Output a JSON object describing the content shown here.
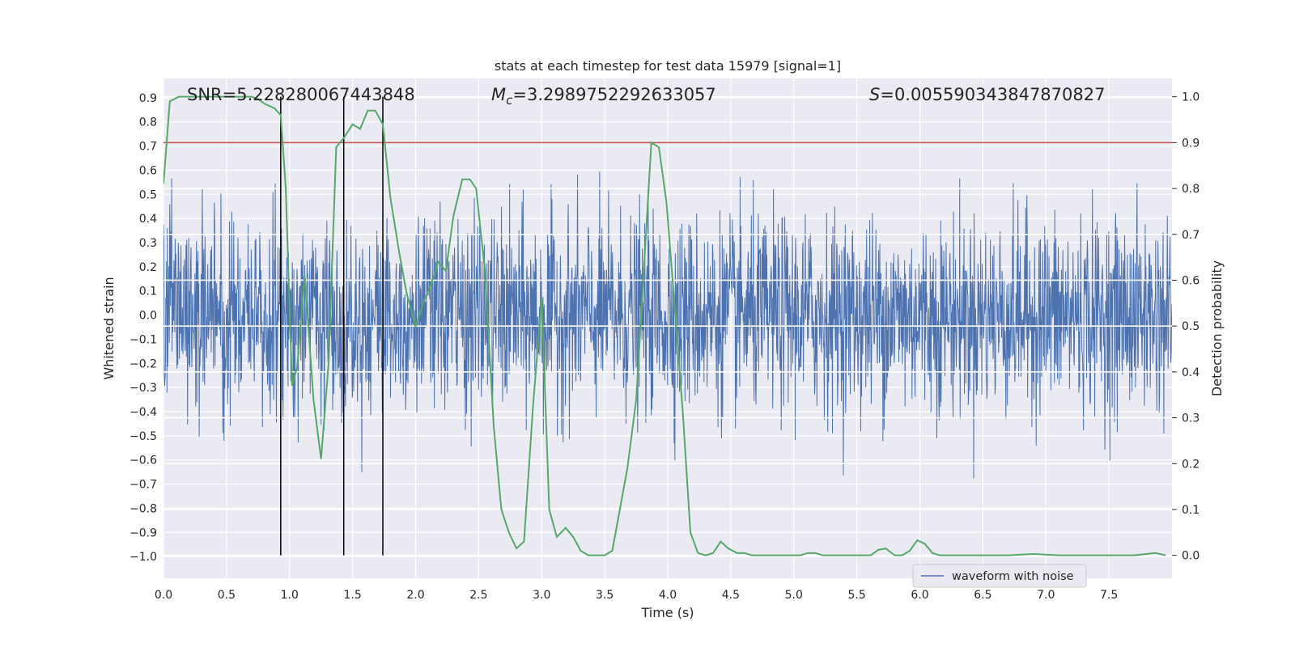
{
  "chart_data": {
    "type": "line",
    "title": "stats at each timestep for test data 15979 [signal=1]",
    "xlabel": "Time (s)",
    "ylabel": "Whitened strain",
    "y2label": "Detection probability",
    "xlim": [
      0.0,
      8.0
    ],
    "ylim": [
      -1.09,
      0.98
    ],
    "y2lim": [
      -0.05,
      1.04
    ],
    "xticks": [
      0.0,
      0.5,
      1.0,
      1.5,
      2.0,
      2.5,
      3.0,
      3.5,
      4.0,
      4.5,
      5.0,
      5.5,
      6.0,
      6.5,
      7.0,
      7.5
    ],
    "xtick_labels": [
      "0.0",
      "0.5",
      "1.0",
      "1.5",
      "2.0",
      "2.5",
      "3.0",
      "3.5",
      "4.0",
      "4.5",
      "5.0",
      "5.5",
      "6.0",
      "6.5",
      "7.0",
      "7.5"
    ],
    "yticks": [
      0.9,
      0.8,
      0.7,
      0.6,
      0.5,
      0.4,
      0.3,
      0.2,
      0.1,
      0.0,
      -0.1,
      -0.2,
      -0.3,
      -0.4,
      -0.5,
      -0.6,
      -0.7,
      -0.8,
      -0.9,
      -1.0
    ],
    "ytick_labels": [
      "0.9",
      "0.8",
      "0.7",
      "0.6",
      "0.5",
      "0.4",
      "0.3",
      "0.2",
      "0.1",
      "0.0",
      "−0.1",
      "−0.2",
      "−0.3",
      "−0.4",
      "−0.5",
      "−0.6",
      "−0.7",
      "−0.8",
      "−0.9",
      "−1.0"
    ],
    "y2ticks": [
      1.0,
      0.9,
      0.8,
      0.7,
      0.6,
      0.5,
      0.4,
      0.3,
      0.2,
      0.1,
      0.0
    ],
    "y2tick_labels": [
      "1.0",
      "0.9",
      "0.8",
      "0.7",
      "0.6",
      "0.5",
      "0.4",
      "0.3",
      "0.2",
      "0.1",
      "0.0"
    ],
    "grid": true,
    "legend_position": "bottom-right",
    "annotations": {
      "snr": {
        "prefix": "SNR",
        "value": "=5.228280067443848"
      },
      "mc": {
        "prefix": "M",
        "subscript": "c",
        "value": "=3.2989752292633057"
      },
      "s": {
        "prefix": "S",
        "value": "=0.005590343847870827"
      }
    },
    "threshold": {
      "y2": 0.9,
      "color": "#c44e52"
    },
    "vlines": {
      "x": [
        0.93,
        1.43,
        1.74
      ],
      "color": "#000000"
    },
    "waveform": {
      "name": "waveform with noise",
      "color": "#4c72b0",
      "noise_sd": 0.2,
      "noise_clip": 0.95
    },
    "probability": {
      "color": "#55a868",
      "x": [
        0.0,
        0.05,
        0.12,
        0.2,
        0.3,
        0.4,
        0.5,
        0.6,
        0.7,
        0.75,
        0.8,
        0.88,
        0.93,
        0.97,
        1.02,
        1.06,
        1.12,
        1.19,
        1.25,
        1.31,
        1.37,
        1.43,
        1.5,
        1.56,
        1.62,
        1.68,
        1.74,
        1.8,
        1.87,
        1.93,
        2.0,
        2.06,
        2.12,
        2.18,
        2.24,
        2.3,
        2.37,
        2.43,
        2.48,
        2.55,
        2.62,
        2.68,
        2.74,
        2.8,
        2.86,
        2.93,
        3.0,
        3.06,
        3.12,
        3.19,
        3.25,
        3.31,
        3.37,
        3.43,
        3.5,
        3.56,
        3.62,
        3.68,
        3.75,
        3.81,
        3.87,
        3.93,
        3.99,
        4.05,
        4.12,
        4.18,
        4.24,
        4.3,
        4.36,
        4.42,
        4.48,
        4.55,
        4.61,
        4.67,
        4.73,
        4.8,
        4.86,
        4.92,
        4.98,
        5.05,
        5.11,
        5.17,
        5.23,
        5.3,
        5.36,
        5.42,
        5.48,
        5.55,
        5.61,
        5.67,
        5.73,
        5.8,
        5.86,
        5.92,
        5.98,
        6.04,
        6.1,
        6.16,
        6.22,
        6.3,
        6.5,
        6.7,
        6.9,
        7.1,
        7.3,
        7.5,
        7.7,
        7.87,
        7.95
      ],
      "y": [
        0.81,
        0.99,
        1.0,
        1.0,
        1.0,
        1.0,
        1.0,
        1.0,
        1.0,
        0.995,
        0.985,
        0.975,
        0.96,
        0.8,
        0.37,
        0.41,
        0.61,
        0.34,
        0.21,
        0.42,
        0.89,
        0.91,
        0.94,
        0.93,
        0.97,
        0.97,
        0.94,
        0.78,
        0.66,
        0.57,
        0.5,
        0.55,
        0.59,
        0.64,
        0.62,
        0.74,
        0.82,
        0.82,
        0.8,
        0.62,
        0.28,
        0.1,
        0.05,
        0.015,
        0.03,
        0.32,
        0.56,
        0.1,
        0.04,
        0.06,
        0.04,
        0.01,
        0.0,
        0.0,
        0.0,
        0.01,
        0.1,
        0.19,
        0.34,
        0.62,
        0.9,
        0.89,
        0.77,
        0.56,
        0.31,
        0.05,
        0.005,
        0.0,
        0.005,
        0.03,
        0.015,
        0.005,
        0.005,
        0.0,
        0.0,
        0.0,
        0.0,
        0.0,
        0.0,
        0.0,
        0.005,
        0.005,
        0.0,
        0.0,
        0.0,
        0.0,
        0.0,
        0.0,
        0.0,
        0.012,
        0.015,
        0.0,
        0.0,
        0.01,
        0.033,
        0.025,
        0.005,
        0.0,
        0.0,
        0.0,
        0.0,
        0.0,
        0.003,
        0.0,
        0.0,
        0.0,
        0.0,
        0.005,
        0.0
      ]
    }
  }
}
